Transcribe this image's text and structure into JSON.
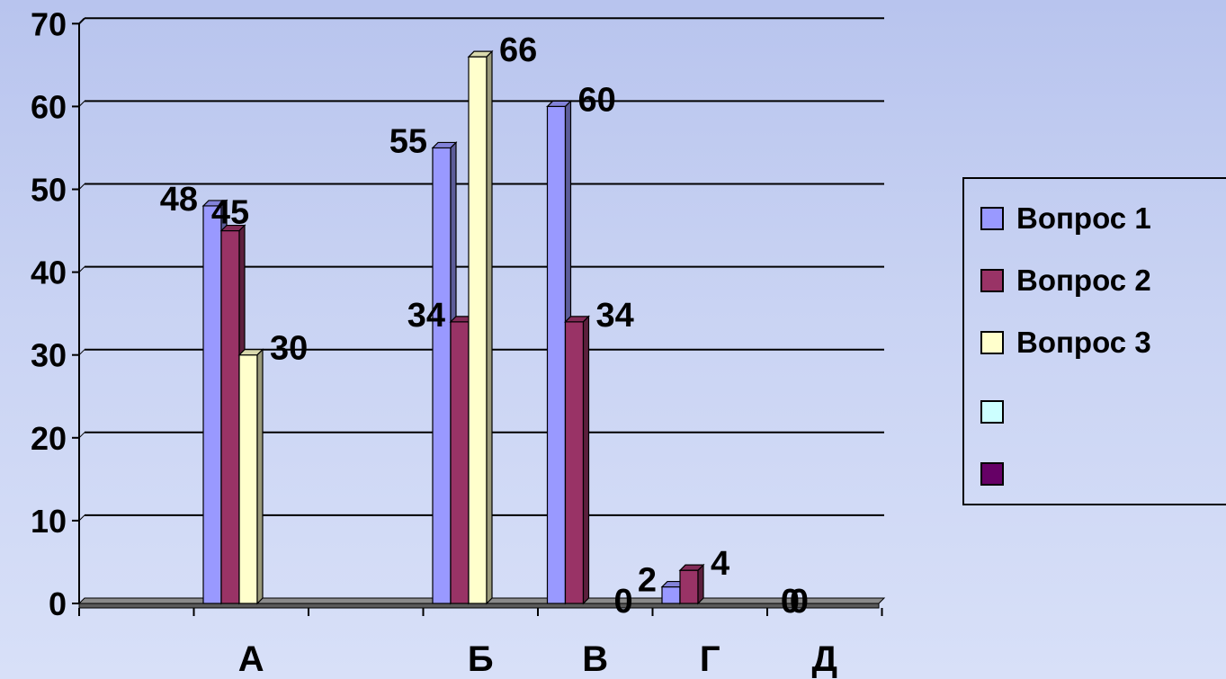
{
  "chart_data": {
    "type": "bar",
    "categories": [
      "",
      "А",
      "",
      "Б",
      "В",
      "Г",
      "Д"
    ],
    "series": [
      {
        "name": "Вопрос 1",
        "color": "#9999ff",
        "values": [
          null,
          48,
          null,
          55,
          60,
          2,
          0
        ]
      },
      {
        "name": "Вопрос 2",
        "color": "#993366",
        "values": [
          null,
          45,
          null,
          34,
          34,
          4,
          0
        ]
      },
      {
        "name": "Вопрос 3",
        "color": "#ffffcc",
        "values": [
          null,
          30,
          null,
          66,
          0,
          null,
          null
        ]
      }
    ],
    "legend_extra": [
      {
        "name": "",
        "color": "#ccffff"
      },
      {
        "name": "",
        "color": "#660066"
      }
    ],
    "yticks": [
      "0",
      "10",
      "20",
      "30",
      "40",
      "50",
      "60",
      "70"
    ],
    "ylim": [
      0,
      70
    ],
    "grid": true,
    "legend_position": "right",
    "data_labels": [
      {
        "text": "48"
      },
      {
        "text": "45"
      },
      {
        "text": "30"
      },
      {
        "text": "55"
      },
      {
        "text": "34"
      },
      {
        "text": "66"
      },
      {
        "text": "60"
      },
      {
        "text": "34"
      },
      {
        "text": "0"
      },
      {
        "text": "2"
      },
      {
        "text": "4"
      },
      {
        "text": "0"
      },
      {
        "text": "0"
      }
    ]
  }
}
